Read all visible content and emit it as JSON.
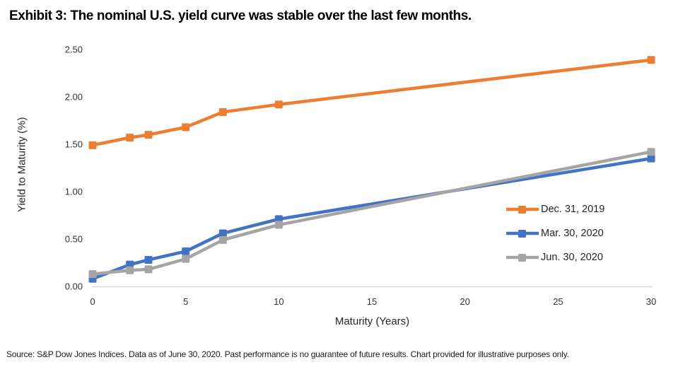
{
  "title": "Exhibit 3:  The nominal U.S. yield curve was stable over the last few months.",
  "source": "Source:  S&P Dow Jones Indices.  Data as of June 30, 2020.  Past performance is no guarantee of future results. Chart provided for illustrative purposes only.",
  "colors": {
    "orange_series": "#ED7D31",
    "blue_series": "#4472C4",
    "gray_series": "#A5A5A5",
    "axis_line": "#D9D9D9",
    "tick_text": "#333333",
    "title_text": "#000000"
  },
  "chart_data": {
    "type": "line",
    "title": "Exhibit 3:  The nominal U.S. yield curve was stable over the last few months.",
    "xlabel": "Maturity (Years)",
    "ylabel": "Yield to Maturity (%)",
    "x": [
      0,
      2,
      3,
      5,
      7,
      10,
      30
    ],
    "xlim": [
      0,
      30
    ],
    "ylim": [
      0,
      2.5
    ],
    "x_ticks": [
      0,
      5,
      10,
      15,
      20,
      25,
      30
    ],
    "y_ticks": [
      0,
      0.5,
      1,
      1.5,
      2,
      2.5
    ],
    "y_tick_labels": [
      "0.00",
      "0.50",
      "1.00",
      "1.50",
      "2.00",
      "2.50"
    ],
    "grid": false,
    "marker": "square",
    "legend_position": "right-middle",
    "series": [
      {
        "name": "Dec. 31, 2019",
        "color": "#ED7D31",
        "values": [
          1.49,
          1.57,
          1.6,
          1.68,
          1.84,
          1.92,
          2.39
        ]
      },
      {
        "name": "Mar. 30, 2020",
        "color": "#4472C4",
        "values": [
          0.08,
          0.23,
          0.28,
          0.37,
          0.56,
          0.71,
          1.35
        ]
      },
      {
        "name": "Jun. 30, 2020",
        "color": "#A5A5A5",
        "values": [
          0.13,
          0.17,
          0.18,
          0.29,
          0.49,
          0.65,
          1.42
        ]
      }
    ]
  }
}
